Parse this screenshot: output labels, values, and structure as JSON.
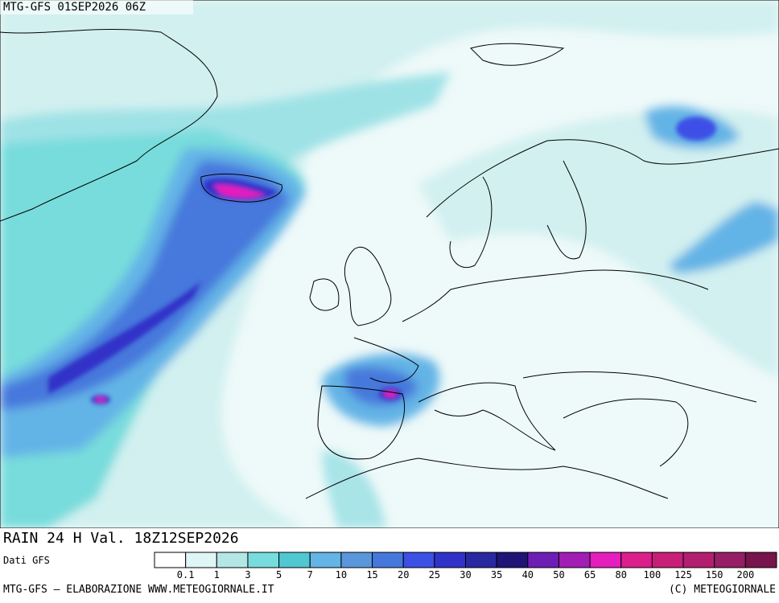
{
  "header": {
    "title": "MTG-GFS 01SEP2026 06Z"
  },
  "map": {
    "caption": "RAIN 24 H Val. 18Z12SEP2026"
  },
  "legend": {
    "source": "Dati GFS",
    "labels": [
      "0.1",
      "1",
      "3",
      "5",
      "7",
      "10",
      "15",
      "20",
      "25",
      "30",
      "35",
      "40",
      "50",
      "65",
      "80",
      "100",
      "125",
      "150",
      "200"
    ],
    "colors": [
      "#ffffff",
      "#e0f5f5",
      "#b4e6e6",
      "#78dcdc",
      "#50c8d2",
      "#64b4e6",
      "#5a96dc",
      "#4678dc",
      "#3c50e6",
      "#3232c8",
      "#2828a0",
      "#1e1478",
      "#6e1eb4",
      "#a01eb4",
      "#e61ebe",
      "#dc1e8c",
      "#c81e78",
      "#b41e6e",
      "#961e64",
      "#78144b"
    ]
  },
  "footer": {
    "left": "MTG-GFS — ELABORAZIONE WWW.METEOGIORNALE.IT",
    "right": "(C) METEOGIORNALE"
  }
}
